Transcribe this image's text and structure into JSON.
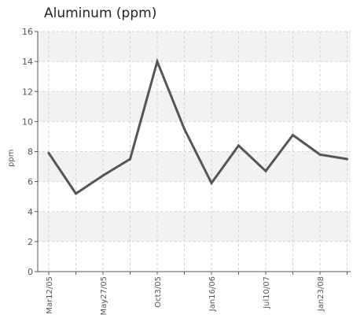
{
  "chart_data": {
    "type": "line",
    "title": "Aluminum (ppm)",
    "ylabel": "ppm",
    "xlabel": "",
    "ylim": [
      0,
      16
    ],
    "yticks": [
      0,
      2,
      4,
      6,
      8,
      10,
      12,
      14,
      16
    ],
    "x_tick_labels": [
      "Mar12/05",
      "May27/05",
      "Oct3/05",
      "Jan16/06",
      "Jul10/07",
      "Jan23/08"
    ],
    "categories": [
      "Mar12/05",
      "",
      "May27/05",
      "",
      "Oct3/05",
      "",
      "Jan16/06",
      "",
      "Jul10/07",
      "",
      "Jan23/08",
      ""
    ],
    "series": [
      {
        "values": [
          7.9,
          5.2,
          6.4,
          7.5,
          14.0,
          9.5,
          5.9,
          8.4,
          6.7,
          9.1,
          7.8,
          7.5
        ]
      }
    ],
    "grid": true,
    "line_color": "#555555",
    "band_color": "#f2f2f2"
  }
}
